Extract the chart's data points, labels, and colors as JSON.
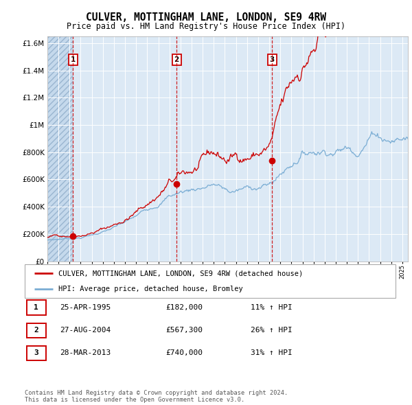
{
  "title": "CULVER, MOTTINGHAM LANE, LONDON, SE9 4RW",
  "subtitle": "Price paid vs. HM Land Registry's House Price Index (HPI)",
  "plot_bg_color": "#dce9f5",
  "red_line_color": "#cc0000",
  "blue_line_color": "#7aadd4",
  "sale_years": [
    1995.32,
    2004.65,
    2013.25
  ],
  "sale_values": [
    182000,
    567300,
    740000
  ],
  "sale_labels": [
    "1",
    "2",
    "3"
  ],
  "vline_color": "#cc0000",
  "ylim": [
    0,
    1650000
  ],
  "xlim_start": 1993,
  "xlim_end": 2025.5,
  "yticks": [
    0,
    200000,
    400000,
    600000,
    800000,
    1000000,
    1200000,
    1400000,
    1600000
  ],
  "ytick_labels": [
    "£0",
    "£200K",
    "£400K",
    "£600K",
    "£800K",
    "£1M",
    "£1.2M",
    "£1.4M",
    "£1.6M"
  ],
  "legend_red_label": "CULVER, MOTTINGHAM LANE, LONDON, SE9 4RW (detached house)",
  "legend_blue_label": "HPI: Average price, detached house, Bromley",
  "table_rows": [
    {
      "num": "1",
      "date": "25-APR-1995",
      "price": "£182,000",
      "hpi": "11% ↑ HPI"
    },
    {
      "num": "2",
      "date": "27-AUG-2004",
      "price": "£567,300",
      "hpi": "26% ↑ HPI"
    },
    {
      "num": "3",
      "date": "28-MAR-2013",
      "price": "£740,000",
      "hpi": "31% ↑ HPI"
    }
  ],
  "footer": "Contains HM Land Registry data © Crown copyright and database right 2024.\nThis data is licensed under the Open Government Licence v3.0."
}
